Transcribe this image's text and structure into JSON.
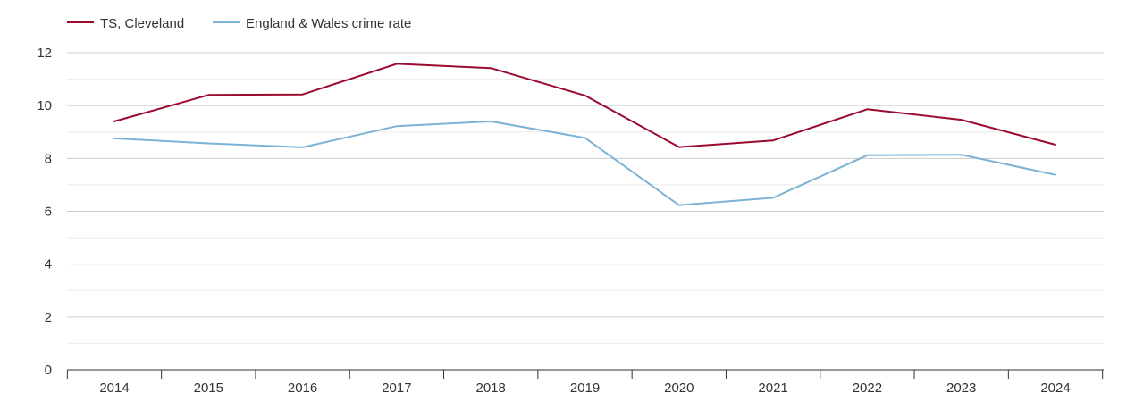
{
  "chart_data": {
    "type": "line",
    "title": "",
    "xlabel": "",
    "ylabel": "",
    "categories": [
      "2014",
      "2015",
      "2016",
      "2017",
      "2018",
      "2019",
      "2020",
      "2021",
      "2022",
      "2023",
      "2024"
    ],
    "ylim": [
      0,
      12
    ],
    "yticks": [
      "0",
      "2",
      "4",
      "6",
      "8",
      "10",
      "12"
    ],
    "grid": true,
    "legend_position": "top-left",
    "series": [
      {
        "name": "TS, Cleveland",
        "color": "#9b0a2f",
        "values": [
          9.4,
          10.4,
          10.42,
          11.58,
          11.42,
          10.38,
          8.43,
          8.68,
          9.86,
          9.46,
          8.52
        ]
      },
      {
        "name": "England & Wales crime rate",
        "color": "#7bb2d6",
        "values": [
          8.76,
          8.57,
          8.42,
          9.22,
          9.4,
          8.78,
          6.23,
          6.51,
          8.12,
          8.14,
          7.38
        ]
      }
    ]
  }
}
